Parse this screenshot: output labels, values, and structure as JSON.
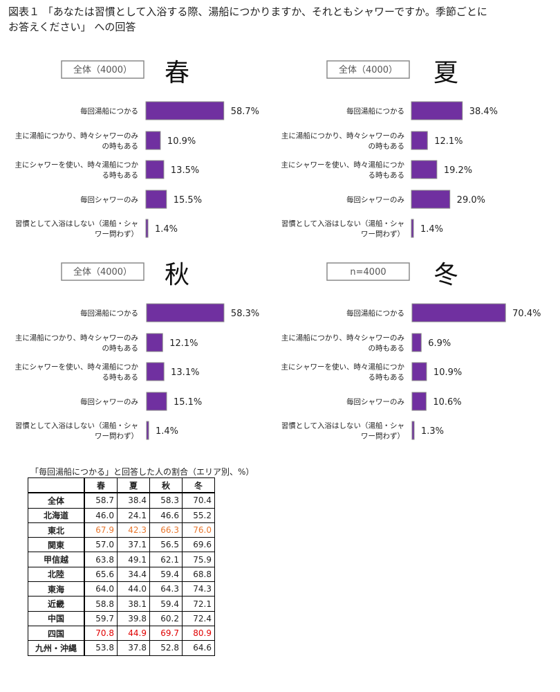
{
  "title": {
    "line1": "図表１ 「あなたは習慣として入浴する際、湯船につかりますか、それともシャワーですか。季節ごとに",
    "line2": "お答えください」 への回答"
  },
  "colors": {
    "bar": "#7030a0",
    "bar_border": "#8a8a8a",
    "highlight_orange": "#e8772e",
    "highlight_red": "#e00000"
  },
  "chart_data": [
    {
      "type": "bar",
      "title": "春",
      "sample_label": "全体（4000）",
      "categories": [
        "毎回湯船につかる",
        "主に湯船につかり、時々シャワーのみの時もある",
        "主にシャワーを使い、時々湯船につかる時もある",
        "毎回シャワーのみ",
        "習慣として入浴はしない（湯船・シャワー問わず）"
      ],
      "category_lines": [
        [
          "毎回湯船につかる"
        ],
        [
          "主に湯船につかり、時々シャワーのみ",
          "の時もある"
        ],
        [
          "主にシャワーを使い、時々湯船につか",
          "る時もある"
        ],
        [
          "毎回シャワーのみ"
        ],
        [
          "習慣として入浴はしない（湯船・シャ",
          "ワー問わず）"
        ]
      ],
      "values": [
        58.7,
        10.9,
        13.5,
        15.5,
        1.4
      ],
      "value_labels": [
        "58.7%",
        "10.9%",
        "13.5%",
        "15.5%",
        "1.4%"
      ]
    },
    {
      "type": "bar",
      "title": "夏",
      "sample_label": "全体（4000）",
      "categories": [
        "毎回湯船につかる",
        "主に湯船につかり、時々シャワーのみの時もある",
        "主にシャワーを使い、時々湯船につかる時もある",
        "毎回シャワーのみ",
        "習慣として入浴はしない（湯船・シャワー問わず）"
      ],
      "category_lines": [
        [
          "毎回湯船につかる"
        ],
        [
          "主に湯船につかり、時々シャワーのみ",
          "の時もある"
        ],
        [
          "主にシャワーを使い、時々湯船につか",
          "る時もある"
        ],
        [
          "毎回シャワーのみ"
        ],
        [
          "習慣として入浴はしない（湯船・シャ",
          "ワー問わず）"
        ]
      ],
      "values": [
        38.4,
        12.1,
        19.2,
        29.0,
        1.4
      ],
      "value_labels": [
        "38.4%",
        "12.1%",
        "19.2%",
        "29.0%",
        "1.4%"
      ]
    },
    {
      "type": "bar",
      "title": "秋",
      "sample_label": "全体（4000）",
      "categories": [
        "毎回湯船につかる",
        "主に湯船につかり、時々シャワーのみの時もある",
        "主にシャワーを使い、時々湯船につかる時もある",
        "毎回シャワーのみ",
        "習慣として入浴はしない（湯船・シャワー問わず）"
      ],
      "category_lines": [
        [
          "毎回湯船につかる"
        ],
        [
          "主に湯船につかり、時々シャワーのみ",
          "の時もある"
        ],
        [
          "主にシャワーを使い、時々湯船につか",
          "る時もある"
        ],
        [
          "毎回シャワーのみ"
        ],
        [
          "習慣として入浴はしない（湯船・シャ",
          "ワー問わず）"
        ]
      ],
      "values": [
        58.3,
        12.1,
        13.1,
        15.1,
        1.4
      ],
      "value_labels": [
        "58.3%",
        "12.1%",
        "13.1%",
        "15.1%",
        "1.4%"
      ]
    },
    {
      "type": "bar",
      "title": "冬",
      "sample_label": "n=4000",
      "categories": [
        "毎回湯船につかる",
        "主に湯船につかり、時々シャワーのみの時もある",
        "主にシャワーを使い、時々湯船につかる時もある",
        "毎回シャワーのみ",
        "習慣として入浴はしない（湯船・シャワー問わず）"
      ],
      "category_lines": [
        [
          "毎回湯船につかる"
        ],
        [
          "主に湯船につかり、時々シャワーのみ",
          "の時もある"
        ],
        [
          "主にシャワーを使い、時々湯船につか",
          "る時もある"
        ],
        [
          "毎回シャワーのみ"
        ],
        [
          "習慣として入浴はしない（湯船・シャ",
          "ワー問わず）"
        ]
      ],
      "values": [
        70.4,
        6.9,
        10.9,
        10.6,
        1.3
      ],
      "value_labels": [
        "70.4%",
        "6.9%",
        "10.9%",
        "10.6%",
        "1.3%"
      ]
    },
    {
      "type": "table",
      "title": "「毎回湯船につかる」と回答した人の割合（エリア別、%）",
      "columns": [
        "",
        "春",
        "夏",
        "秋",
        "冬"
      ],
      "rows": [
        {
          "area": "全体",
          "values": [
            "58.7",
            "38.4",
            "58.3",
            "70.4"
          ],
          "highlight": ""
        },
        {
          "area": "北海道",
          "values": [
            "46.0",
            "24.1",
            "46.6",
            "55.2"
          ],
          "highlight": ""
        },
        {
          "area": "東北",
          "values": [
            "67.9",
            "42.3",
            "66.3",
            "76.0"
          ],
          "highlight": "orange"
        },
        {
          "area": "関東",
          "values": [
            "57.0",
            "37.1",
            "56.5",
            "69.6"
          ],
          "highlight": ""
        },
        {
          "area": "甲信越",
          "values": [
            "63.8",
            "49.1",
            "62.1",
            "75.9"
          ],
          "highlight": ""
        },
        {
          "area": "北陸",
          "values": [
            "65.6",
            "34.4",
            "59.4",
            "68.8"
          ],
          "highlight": ""
        },
        {
          "area": "東海",
          "values": [
            "64.0",
            "44.0",
            "64.3",
            "74.3"
          ],
          "highlight": ""
        },
        {
          "area": "近畿",
          "values": [
            "58.8",
            "38.1",
            "59.4",
            "72.1"
          ],
          "highlight": ""
        },
        {
          "area": "中国",
          "values": [
            "59.7",
            "39.8",
            "60.2",
            "72.4"
          ],
          "highlight": ""
        },
        {
          "area": "四国",
          "values": [
            "70.8",
            "44.9",
            "69.7",
            "80.9"
          ],
          "highlight": "red"
        },
        {
          "area": "九州・沖縄",
          "values": [
            "53.8",
            "37.8",
            "52.8",
            "64.6"
          ],
          "highlight": ""
        }
      ]
    }
  ]
}
